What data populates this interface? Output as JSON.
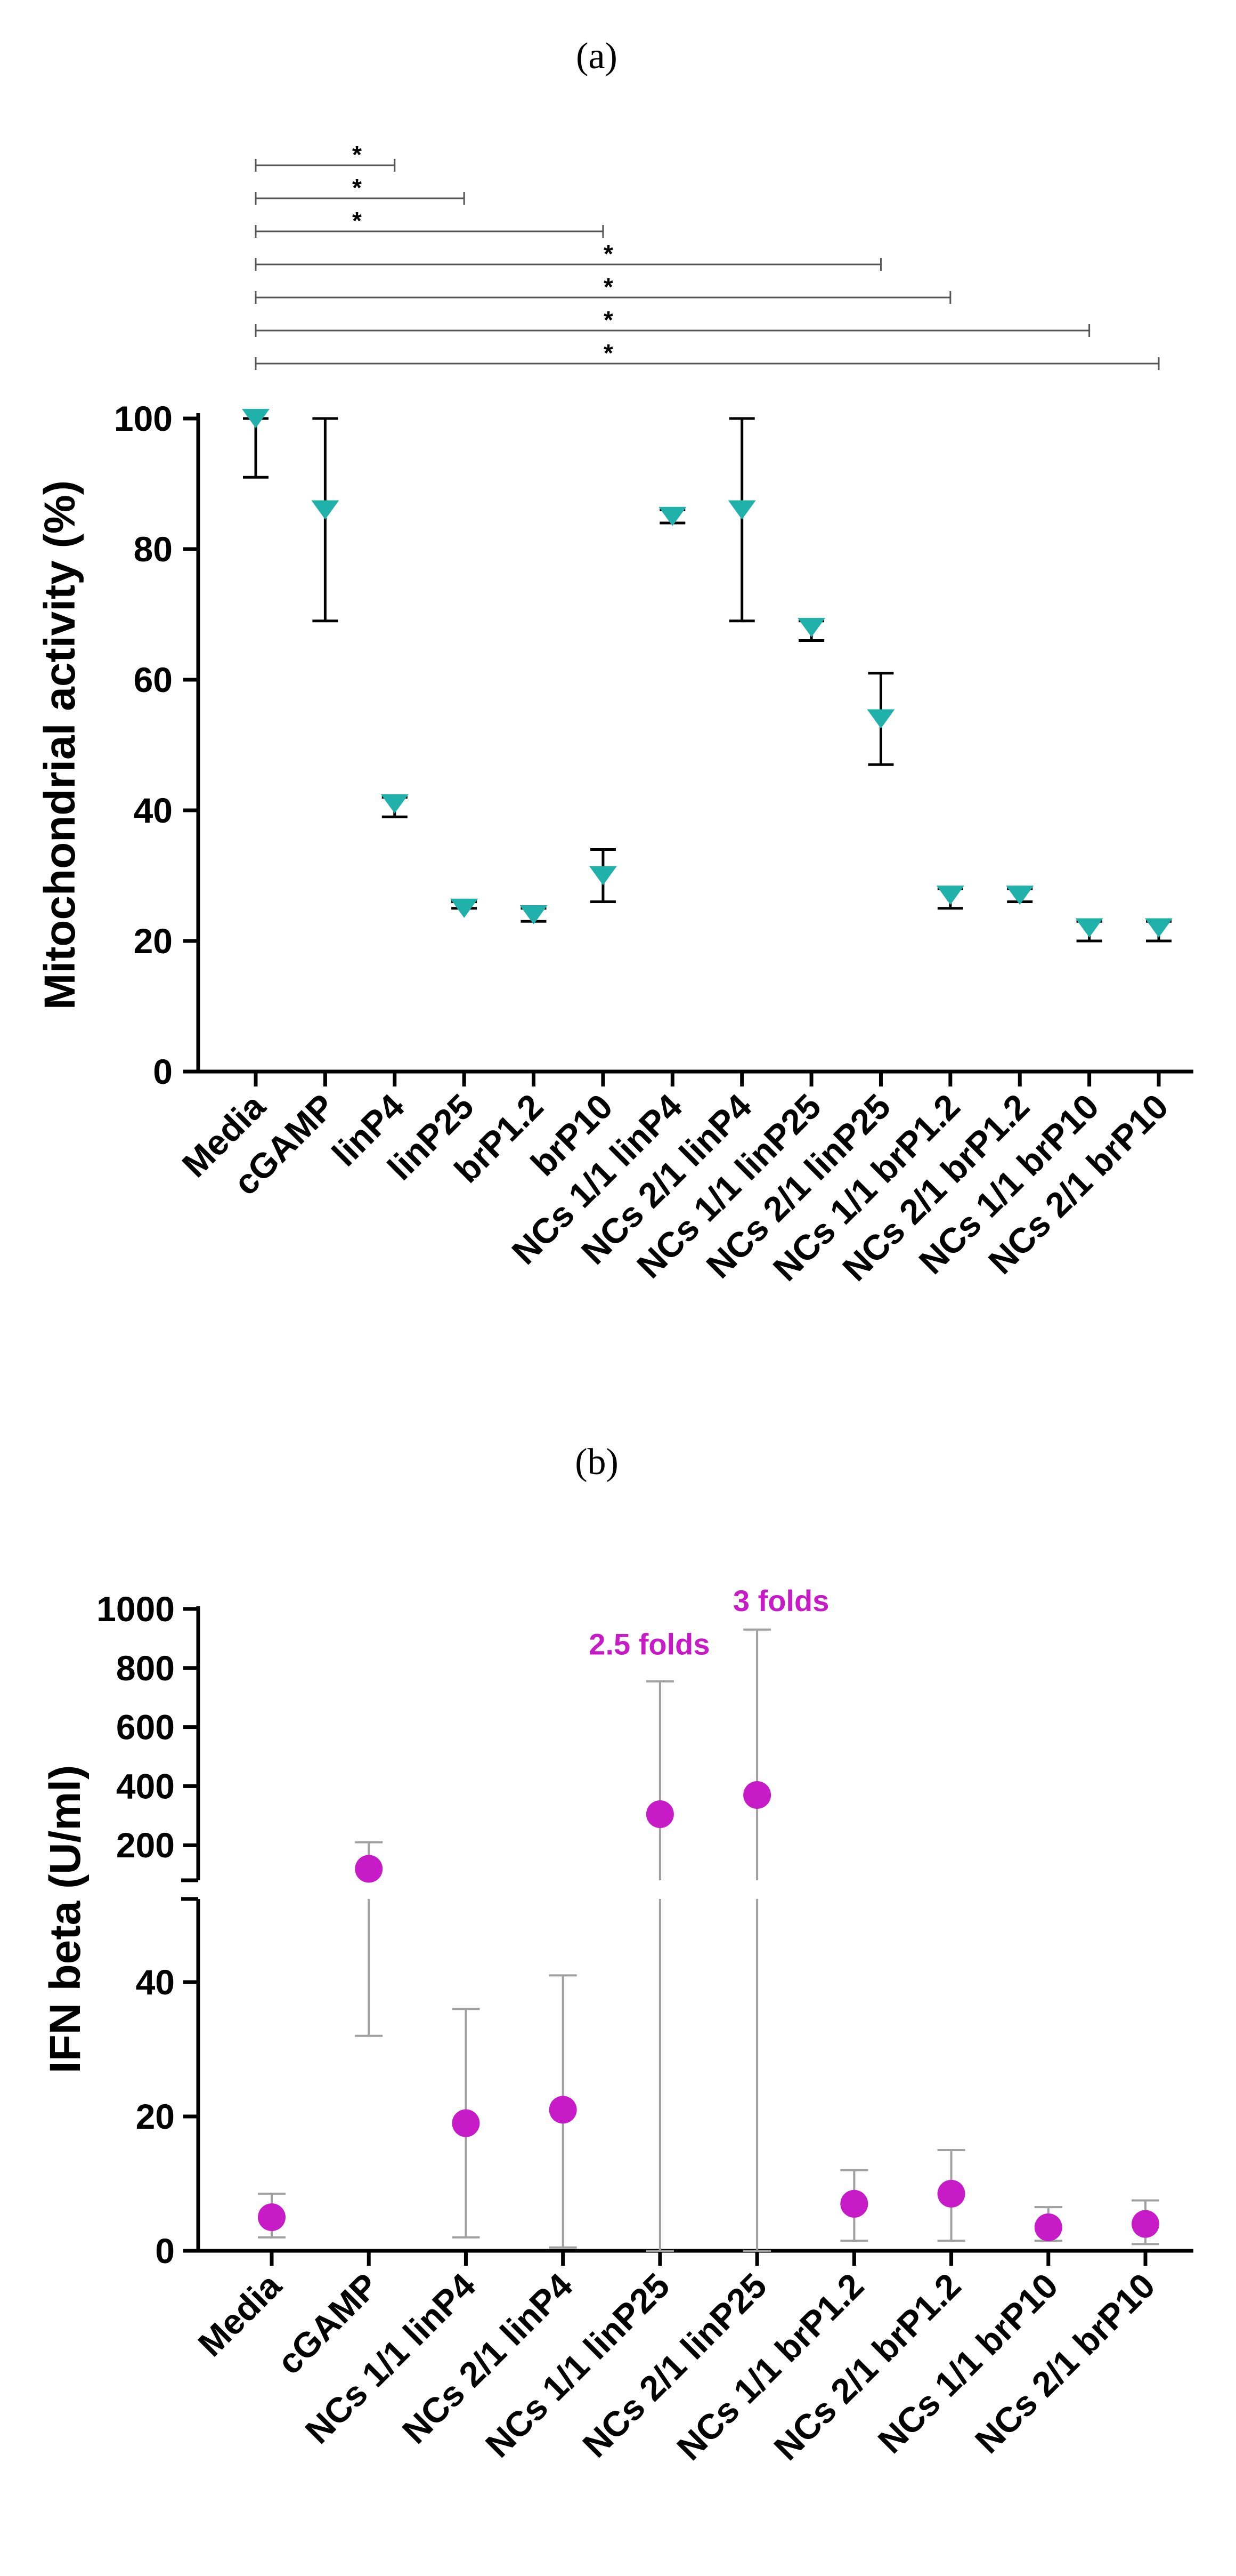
{
  "figure": {
    "label_a": "(a)",
    "label_b": "(b)"
  },
  "chart_data": [
    {
      "type": "scatter",
      "marker": "triangle-down",
      "color": "#20b2aa",
      "ylabel": "Mitochondrial activity (%)",
      "ylim": [
        0,
        100
      ],
      "yticks": [
        "0",
        "20",
        "40",
        "60",
        "80",
        "100"
      ],
      "categories": [
        "Media",
        "cGAMP",
        "linP4",
        "linP25",
        "brP1.2",
        "brP10",
        "NCs 1/1 linP4",
        "NCs 2/1 linP4",
        "NCs 1/1 linP25",
        "NCs 2/1 linP25",
        "NCs 1/1 brP1.2",
        "NCs 2/1 brP1.2",
        "NCs 1/1 brP10",
        "NCs 2/1 brP10"
      ],
      "values": [
        100,
        86,
        41,
        25,
        24,
        30,
        85,
        86,
        68,
        54,
        27,
        27,
        22,
        22
      ],
      "error_low": [
        91,
        69,
        39,
        25,
        23,
        26,
        84,
        69,
        66,
        47,
        25,
        26,
        20,
        20
      ],
      "error_high": [
        100,
        100,
        42,
        26,
        25,
        34,
        86,
        100,
        69,
        61,
        28,
        28,
        23,
        23
      ],
      "significance": [
        {
          "from": "Media",
          "to": "linP4",
          "label": "*"
        },
        {
          "from": "Media",
          "to": "linP25",
          "label": "*"
        },
        {
          "from": "Media",
          "to": "brP10",
          "label": "*"
        },
        {
          "from": "Media",
          "to": "NCs 2/1 linP25",
          "label": "*"
        },
        {
          "from": "Media",
          "to": "NCs 1/1 brP1.2",
          "label": "*"
        },
        {
          "from": "Media",
          "to": "NCs 1/1 brP10",
          "label": "*"
        },
        {
          "from": "Media",
          "to": "NCs 2/1 brP10",
          "label": "*"
        }
      ]
    },
    {
      "type": "scatter",
      "marker": "circle",
      "color": "#c71bc8",
      "error_color": "#a0a0a0",
      "ylabel": "IFN beta (U/ml)",
      "broken_axis": true,
      "ylim_lower": [
        0,
        50
      ],
      "ylim_upper": [
        50,
        1000
      ],
      "yticks_lower": [
        "0",
        "20",
        "40"
      ],
      "yticks_upper": [
        "200",
        "400",
        "600",
        "800",
        "1000"
      ],
      "categories": [
        "Media",
        "cGAMP",
        "NCs 1/1 linP4",
        "NCs 2/1 linP4",
        "NCs 1/1 linP25",
        "NCs 2/1 linP25",
        "NCs 1/1 brP1.2",
        "NCs 2/1 brP1.2",
        "NCs 1/1 brP10",
        "NCs 2/1 brP10"
      ],
      "values": [
        5,
        120,
        19,
        21,
        305,
        370,
        7,
        8.5,
        3.5,
        4
      ],
      "error_low": [
        2,
        32,
        2,
        0.5,
        0,
        0,
        1.5,
        1.5,
        1.5,
        1
      ],
      "error_high": [
        8.5,
        210,
        36,
        41,
        755,
        930,
        12,
        15,
        6.5,
        7.5
      ],
      "annotations": [
        {
          "text": "2.5 folds",
          "category": "NCs 1/1 linP25"
        },
        {
          "text": "3 folds",
          "category": "NCs 2/1 linP25"
        }
      ]
    }
  ]
}
